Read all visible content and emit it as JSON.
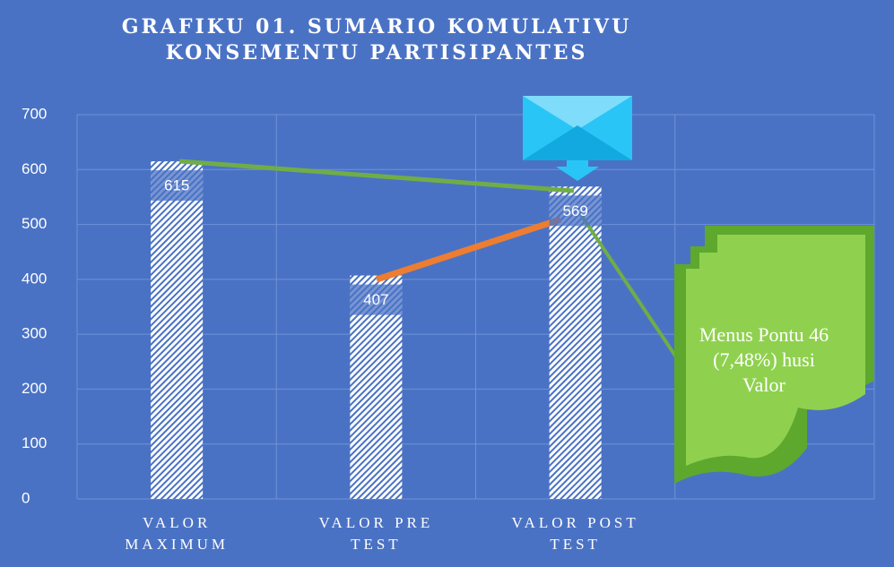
{
  "chart_data": {
    "type": "bar",
    "title": "GRAFIKU 01. SUMARIO KOMULATIVU KONSEMENTU PARTISIPANTES",
    "categories": [
      "VALOR MAXIMUM",
      "VALOR PRE TEST",
      "VALOR POST TEST",
      null
    ],
    "values": [
      615,
      407,
      569,
      null
    ],
    "color": "#4472c4",
    "ylim": [
      0,
      700
    ],
    "yticks": [
      0,
      100,
      200,
      300,
      400,
      500,
      600,
      700
    ],
    "grid": true,
    "annotation": "Menus Pontu 46 (7,48%) husi Valor"
  }
}
